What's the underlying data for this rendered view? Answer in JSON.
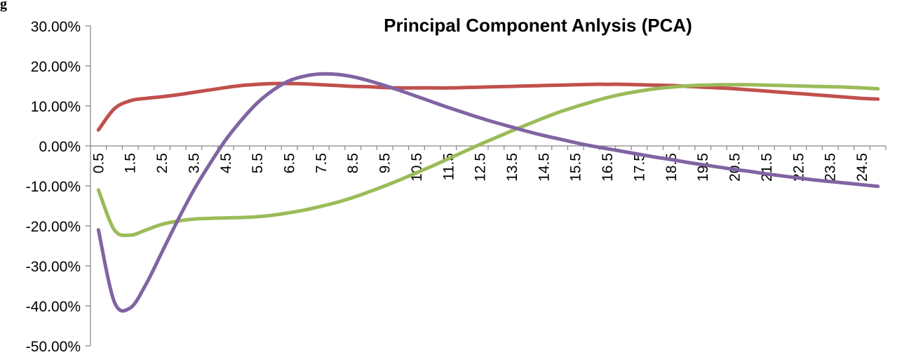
{
  "corner_text": "g",
  "chart_data": {
    "type": "line",
    "title": "Principal Component Anlysis (PCA)",
    "xlabel": "",
    "ylabel": "",
    "ylim": [
      -0.5,
      0.3
    ],
    "y_ticks": [
      "30.00%",
      "20.00%",
      "10.00%",
      "0.00%",
      "-10.00%",
      "-20.00%",
      "-30.00%",
      "-40.00%",
      "-50.00%"
    ],
    "y_tick_values": [
      0.3,
      0.2,
      0.1,
      0.0,
      -0.1,
      -0.2,
      -0.3,
      -0.4,
      -0.5
    ],
    "x": [
      0.5,
      1,
      1.5,
      2,
      2.5,
      3,
      3.5,
      4,
      4.5,
      5,
      5.5,
      6,
      6.5,
      7,
      7.5,
      8,
      8.5,
      9,
      9.5,
      10,
      10.5,
      11,
      11.5,
      12,
      12.5,
      13,
      13.5,
      14,
      14.5,
      15,
      15.5,
      16,
      16.5,
      17,
      17.5,
      18,
      18.5,
      19,
      19.5,
      20,
      20.5,
      21,
      21.5,
      22,
      22.5,
      23,
      23.5,
      24,
      24.5,
      25
    ],
    "x_tick_labels": [
      "0.5",
      "1.5",
      "2.5",
      "3.5",
      "4.5",
      "5.5",
      "6.5",
      "7.5",
      "8.5",
      "9.5",
      "10.5",
      "11.5",
      "12.5",
      "13.5",
      "14.5",
      "15.5",
      "16.5",
      "17.5",
      "18.5",
      "19.5",
      "20.5",
      "21.5",
      "22.5",
      "23.5",
      "24.5"
    ],
    "grid": false,
    "legend": "none",
    "series": [
      {
        "color": "#c0504d",
        "values": [
          0.04,
          0.093,
          0.113,
          0.119,
          0.123,
          0.128,
          0.134,
          0.14,
          0.146,
          0.151,
          0.154,
          0.156,
          0.156,
          0.155,
          0.153,
          0.151,
          0.149,
          0.148,
          0.146,
          0.145,
          0.145,
          0.145,
          0.145,
          0.146,
          0.147,
          0.148,
          0.149,
          0.15,
          0.151,
          0.152,
          0.153,
          0.154,
          0.154,
          0.154,
          0.153,
          0.152,
          0.151,
          0.149,
          0.147,
          0.145,
          0.143,
          0.14,
          0.137,
          0.134,
          0.131,
          0.128,
          0.125,
          0.122,
          0.119,
          0.117
        ]
      },
      {
        "color": "#9bbb59",
        "values": [
          -0.11,
          -0.21,
          -0.223,
          -0.21,
          -0.196,
          -0.188,
          -0.183,
          -0.181,
          -0.18,
          -0.179,
          -0.177,
          -0.173,
          -0.167,
          -0.16,
          -0.151,
          -0.141,
          -0.129,
          -0.115,
          -0.1,
          -0.084,
          -0.067,
          -0.05,
          -0.032,
          -0.014,
          0.004,
          0.021,
          0.038,
          0.054,
          0.07,
          0.085,
          0.098,
          0.11,
          0.121,
          0.13,
          0.137,
          0.143,
          0.147,
          0.15,
          0.152,
          0.153,
          0.153,
          0.153,
          0.152,
          0.151,
          0.15,
          0.149,
          0.148,
          0.147,
          0.145,
          0.143
        ]
      },
      {
        "color": "#8064a2",
        "values": [
          -0.21,
          -0.39,
          -0.405,
          -0.345,
          -0.265,
          -0.185,
          -0.11,
          -0.045,
          0.015,
          0.065,
          0.108,
          0.14,
          0.163,
          0.175,
          0.18,
          0.179,
          0.173,
          0.163,
          0.151,
          0.138,
          0.124,
          0.11,
          0.096,
          0.083,
          0.07,
          0.058,
          0.047,
          0.036,
          0.026,
          0.017,
          0.008,
          0.0,
          -0.007,
          -0.014,
          -0.021,
          -0.028,
          -0.034,
          -0.041,
          -0.047,
          -0.053,
          -0.059,
          -0.064,
          -0.07,
          -0.075,
          -0.08,
          -0.085,
          -0.089,
          -0.093,
          -0.097,
          -0.101
        ]
      }
    ]
  }
}
